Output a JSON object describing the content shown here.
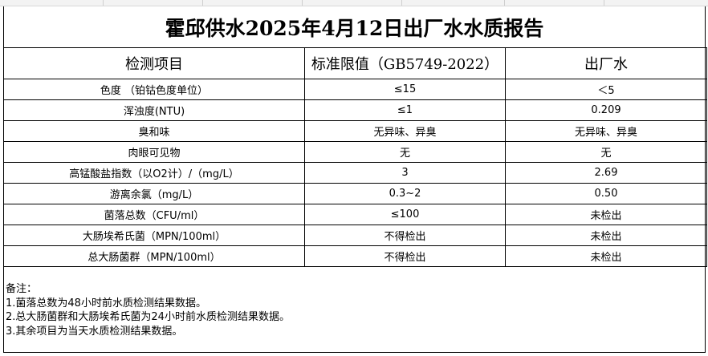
{
  "report": {
    "title": "霍邱供水2025年4月12日出厂水水质报告",
    "headers": [
      "检测项目",
      "标准限值（GB5749-2022）",
      "出厂水"
    ],
    "rows": [
      [
        "色度 （铂钴色度单位）",
        "≤15",
        "＜5"
      ],
      [
        "浑浊度(NTU)",
        "≤1",
        "0.209"
      ],
      [
        "臭和味",
        "无异味、异臭",
        "无异味、异臭"
      ],
      [
        "肉眼可见物",
        "无",
        "无"
      ],
      [
        "高锰酸盐指数（以O2计）/（mg/L）",
        "3",
        "2.69"
      ],
      [
        "游离余氯（mg/L）",
        "0.3~2",
        "0.50"
      ],
      [
        "菌落总数（CFU/ml）",
        "≤100",
        "未检出"
      ],
      [
        "大肠埃希氏菌（MPN/100ml）",
        "不得检出",
        "未检出"
      ],
      [
        "总大肠菌群（MPN/100ml）",
        "不得检出",
        "未检出"
      ]
    ],
    "notes": [
      "备注：",
      "1.菌落总数为48小时前水质检测结果数据。",
      "2.总大肠菌群和大肠埃希氏菌为24小时前水质检测结果数据。",
      "3.其余项目为当天水质检测结果数据。"
    ]
  }
}
